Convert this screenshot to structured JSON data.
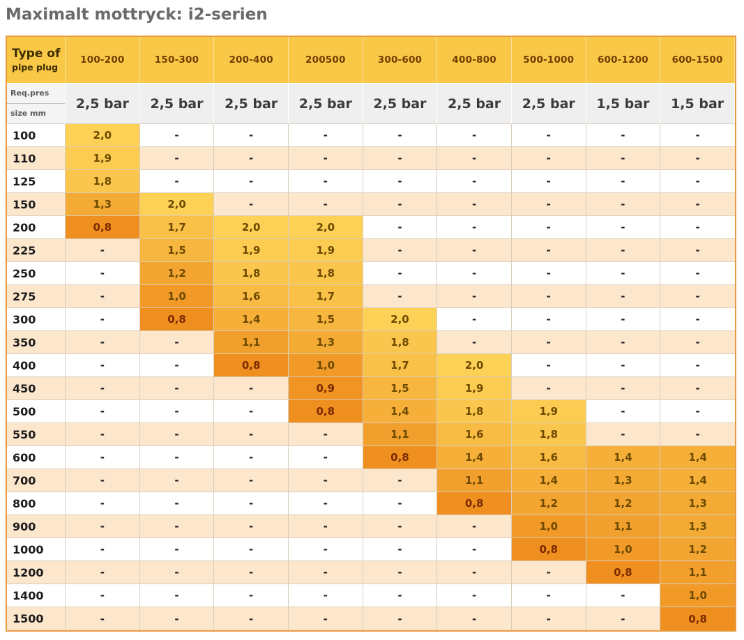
{
  "title": "Maximalt mottryck: i2-serien",
  "colors": {
    "header_yellow": "#f9c847",
    "pressure_grey": "#efefef",
    "stripe_peach": "#fce6cc",
    "stripe_white": "#ffffff",
    "outer_border_orange": "#e79a40",
    "scale_low_orange": "#ef8f1f",
    "scale_high_gold": "#fcd156",
    "value_text": "#6e4a00",
    "value_text_low": "#7b2b00",
    "scale_min_value": 0.8,
    "scale_max_value": 2.0
  },
  "chart_data": {
    "type": "table",
    "title": "Maximalt mottryck: i2-serien",
    "corner": [
      "Type of",
      "pipe plug"
    ],
    "sub_corner": [
      "Req.pres",
      "size mm"
    ],
    "columns": [
      "100-200",
      "150-300",
      "200-400",
      "200500",
      "300-600",
      "400-800",
      "500-1000",
      "600-1200",
      "600-1500"
    ],
    "pressures": [
      "2,5 bar",
      "2,5 bar",
      "2,5 bar",
      "2,5 bar",
      "2,5 bar",
      "2,5 bar",
      "2,5 bar",
      "1,5 bar",
      "1,5 bar"
    ],
    "value_unit": "bar",
    "rows": [
      {
        "size": "100",
        "values": [
          "2,0",
          "-",
          "-",
          "-",
          "-",
          "-",
          "-",
          "-",
          "-"
        ]
      },
      {
        "size": "110",
        "values": [
          "1,9",
          "-",
          "-",
          "-",
          "-",
          "-",
          "-",
          "-",
          "-"
        ]
      },
      {
        "size": "125",
        "values": [
          "1,8",
          "-",
          "-",
          "-",
          "-",
          "-",
          "-",
          "-",
          "-"
        ]
      },
      {
        "size": "150",
        "values": [
          "1,3",
          "2,0",
          "-",
          "-",
          "-",
          "-",
          "-",
          "-",
          "-"
        ]
      },
      {
        "size": "200",
        "values": [
          "0,8",
          "1,7",
          "2,0",
          "2,0",
          "-",
          "-",
          "-",
          "-",
          "-"
        ]
      },
      {
        "size": "225",
        "values": [
          "-",
          "1,5",
          "1,9",
          "1,9",
          "-",
          "-",
          "-",
          "-",
          "-"
        ]
      },
      {
        "size": "250",
        "values": [
          "-",
          "1,2",
          "1,8",
          "1,8",
          "-",
          "-",
          "-",
          "-",
          "-"
        ]
      },
      {
        "size": "275",
        "values": [
          "-",
          "1,0",
          "1,6",
          "1,7",
          "-",
          "-",
          "-",
          "-",
          "-"
        ]
      },
      {
        "size": "300",
        "values": [
          "-",
          "0,8",
          "1,4",
          "1,5",
          "2,0",
          "-",
          "-",
          "-",
          "-"
        ]
      },
      {
        "size": "350",
        "values": [
          "-",
          "-",
          "1,1",
          "1,3",
          "1,8",
          "-",
          "-",
          "-",
          "-"
        ]
      },
      {
        "size": "400",
        "values": [
          "-",
          "-",
          "0,8",
          "1,0",
          "1,7",
          "2,0",
          "-",
          "-",
          "-"
        ]
      },
      {
        "size": "450",
        "values": [
          "-",
          "-",
          "-",
          "0,9",
          "1,5",
          "1,9",
          "-",
          "-",
          "-"
        ]
      },
      {
        "size": "500",
        "values": [
          "-",
          "-",
          "-",
          "0,8",
          "1,4",
          "1,8",
          "1,9",
          "-",
          "-"
        ]
      },
      {
        "size": "550",
        "values": [
          "-",
          "-",
          "-",
          "-",
          "1,1",
          "1,6",
          "1,8",
          "-",
          "-"
        ]
      },
      {
        "size": "600",
        "values": [
          "-",
          "-",
          "-",
          "-",
          "0,8",
          "1,4",
          "1,6",
          "1,4",
          "1,4"
        ]
      },
      {
        "size": "700",
        "values": [
          "-",
          "-",
          "-",
          "-",
          "-",
          "1,1",
          "1,4",
          "1,3",
          "1,4"
        ]
      },
      {
        "size": "800",
        "values": [
          "-",
          "-",
          "-",
          "-",
          "-",
          "0,8",
          "1,2",
          "1,2",
          "1,3"
        ]
      },
      {
        "size": "900",
        "values": [
          "-",
          "-",
          "-",
          "-",
          "-",
          "-",
          "1,0",
          "1,1",
          "1,3"
        ]
      },
      {
        "size": "1000",
        "values": [
          "-",
          "-",
          "-",
          "-",
          "-",
          "-",
          "0,8",
          "1,0",
          "1,2"
        ]
      },
      {
        "size": "1200",
        "values": [
          "-",
          "-",
          "-",
          "-",
          "-",
          "-",
          "-",
          "0,8",
          "1,1"
        ]
      },
      {
        "size": "1400",
        "values": [
          "-",
          "-",
          "-",
          "-",
          "-",
          "-",
          "-",
          "-",
          "1,0"
        ]
      },
      {
        "size": "1500",
        "values": [
          "-",
          "-",
          "-",
          "-",
          "-",
          "-",
          "-",
          "-",
          "0,8"
        ]
      }
    ]
  }
}
